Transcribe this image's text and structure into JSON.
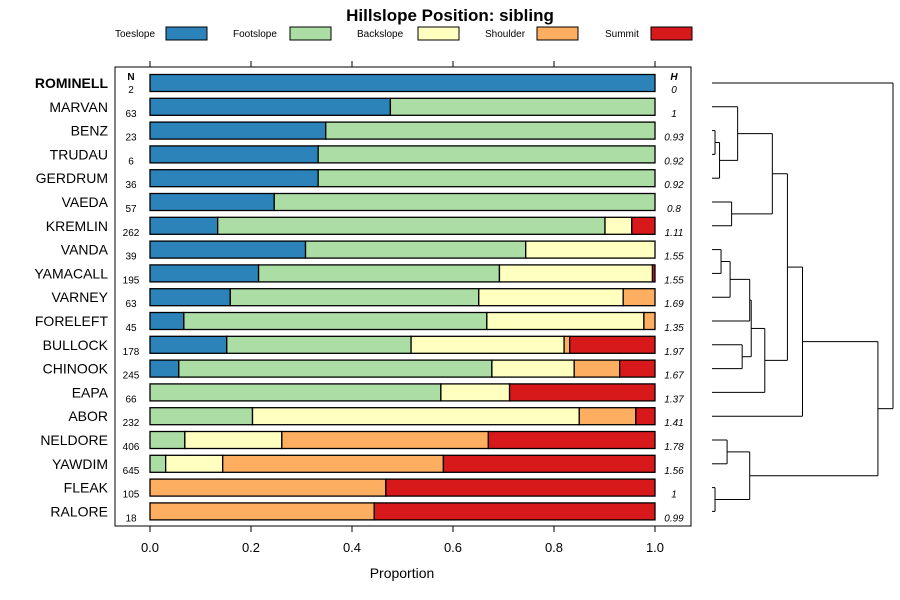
{
  "chart_data": {
    "type": "bar",
    "subtype": "stacked-horizontal-proportion",
    "title": "Hillslope Position: sibling",
    "xlabel": "Proportion",
    "ylabel": "",
    "xlim": [
      0,
      1
    ],
    "x_ticks": [
      "0.0",
      "0.2",
      "0.4",
      "0.6",
      "0.8",
      "1.0"
    ],
    "n_header": "N",
    "h_header": "H",
    "legend": [
      {
        "name": "Toeslope",
        "color": "#2b83ba"
      },
      {
        "name": "Footslope",
        "color": "#abdda4"
      },
      {
        "name": "Backslope",
        "color": "#ffffbf"
      },
      {
        "name": "Shoulder",
        "color": "#fdae61"
      },
      {
        "name": "Summit",
        "color": "#d7191c"
      }
    ],
    "rows": [
      {
        "name": "ROMINELL",
        "bold": true,
        "n": "2",
        "h": "0",
        "values": [
          1.0,
          0,
          0,
          0,
          0
        ]
      },
      {
        "name": "MARVAN",
        "n": "63",
        "h": "1",
        "values": [
          0.476,
          0.524,
          0,
          0,
          0
        ]
      },
      {
        "name": "BENZ",
        "n": "23",
        "h": "0.93",
        "values": [
          0.348,
          0.652,
          0,
          0,
          0
        ]
      },
      {
        "name": "TRUDAU",
        "n": "6",
        "h": "0.92",
        "values": [
          0.333,
          0.667,
          0,
          0,
          0
        ]
      },
      {
        "name": "GERDRUM",
        "n": "36",
        "h": "0.92",
        "values": [
          0.333,
          0.667,
          0,
          0,
          0
        ]
      },
      {
        "name": "VAEDA",
        "n": "57",
        "h": "0.8",
        "values": [
          0.246,
          0.754,
          0,
          0,
          0
        ]
      },
      {
        "name": "KREMLIN",
        "n": "262",
        "h": "1.11",
        "values": [
          0.134,
          0.767,
          0.053,
          0,
          0.046
        ]
      },
      {
        "name": "VANDA",
        "n": "39",
        "h": "1.55",
        "values": [
          0.308,
          0.436,
          0.256,
          0,
          0
        ]
      },
      {
        "name": "YAMACALL",
        "n": "195",
        "h": "1.55",
        "values": [
          0.215,
          0.477,
          0.303,
          0,
          0.005
        ]
      },
      {
        "name": "VARNEY",
        "n": "63",
        "h": "1.69",
        "values": [
          0.159,
          0.492,
          0.286,
          0.063,
          0
        ]
      },
      {
        "name": "FORELEFT",
        "n": "45",
        "h": "1.35",
        "values": [
          0.067,
          0.6,
          0.311,
          0.022,
          0
        ]
      },
      {
        "name": "BULLOCK",
        "n": "178",
        "h": "1.97",
        "values": [
          0.152,
          0.365,
          0.303,
          0.011,
          0.169
        ]
      },
      {
        "name": "CHINOOK",
        "n": "245",
        "h": "1.67",
        "values": [
          0.057,
          0.62,
          0.163,
          0.09,
          0.07
        ]
      },
      {
        "name": "EAPA",
        "n": "66",
        "h": "1.37",
        "values": [
          0,
          0.576,
          0.136,
          0,
          0.288
        ]
      },
      {
        "name": "ABOR",
        "n": "232",
        "h": "1.41",
        "values": [
          0,
          0.203,
          0.647,
          0.112,
          0.038
        ]
      },
      {
        "name": "NELDORE",
        "n": "406",
        "h": "1.78",
        "values": [
          0,
          0.069,
          0.192,
          0.409,
          0.33
        ]
      },
      {
        "name": "YAWDIM",
        "n": "645",
        "h": "1.56",
        "values": [
          0,
          0.031,
          0.113,
          0.437,
          0.419
        ]
      },
      {
        "name": "FLEAK",
        "n": "105",
        "h": "1",
        "values": [
          0,
          0,
          0,
          0.467,
          0.533
        ]
      },
      {
        "name": "RALORE",
        "n": "18",
        "h": "0.99",
        "values": [
          0,
          0,
          0,
          0.444,
          0.556
        ]
      }
    ],
    "dendrogram": {
      "leaf_order": [
        "ROMINELL",
        "MARVAN",
        "BENZ",
        "TRUDAU",
        "GERDRUM",
        "VAEDA",
        "KREMLIN",
        "VANDA",
        "YAMACALL",
        "VARNEY",
        "FORELEFT",
        "BULLOCK",
        "CHINOOK",
        "EAPA",
        "ABOR",
        "NELDORE",
        "YAWDIM",
        "FLEAK",
        "RALORE"
      ],
      "merges": [
        {
          "left": "BENZ",
          "right": "TRUDAU",
          "height": 0.02
        },
        {
          "left": "#1",
          "right": "GERDRUM",
          "height": 0.05
        },
        {
          "left": "MARVAN",
          "right": "#2",
          "height": 0.17
        },
        {
          "left": "VAEDA",
          "right": "KREMLIN",
          "height": 0.13
        },
        {
          "left": "#3",
          "right": "#4",
          "height": 0.4
        },
        {
          "left": "VANDA",
          "right": "YAMACALL",
          "height": 0.06
        },
        {
          "left": "#6",
          "right": "VARNEY",
          "height": 0.12
        },
        {
          "left": "#7",
          "right": "FORELEFT",
          "height": 0.25
        },
        {
          "left": "BULLOCK",
          "right": "CHINOOK",
          "height": 0.2
        },
        {
          "left": "#8",
          "right": "#9",
          "height": 0.26
        },
        {
          "left": "#10",
          "right": "EAPA",
          "height": 0.35
        },
        {
          "left": "#5",
          "right": "#11",
          "height": 0.5
        },
        {
          "left": "#12",
          "right": "ABOR",
          "height": 0.6
        },
        {
          "left": "NELDORE",
          "right": "YAWDIM",
          "height": 0.1
        },
        {
          "left": "FLEAK",
          "right": "RALORE",
          "height": 0.02
        },
        {
          "left": "#14",
          "right": "#15",
          "height": 0.25
        },
        {
          "left": "#13",
          "right": "#16",
          "height": 1.1
        },
        {
          "left": "ROMINELL",
          "right": "#17",
          "height": 1.2
        }
      ]
    }
  }
}
